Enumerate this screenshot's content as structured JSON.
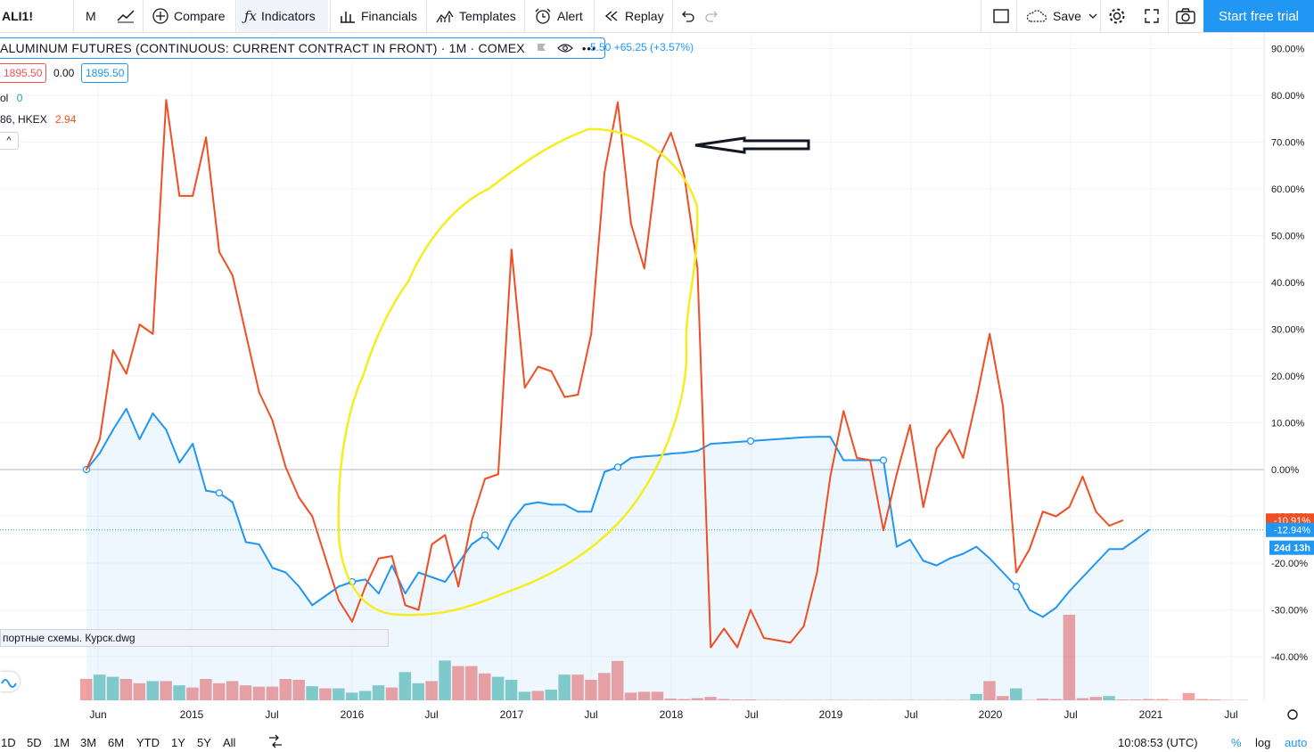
{
  "toolbar": {
    "symbol": "ALI1!",
    "interval": "M",
    "compare": "Compare",
    "indicators": "Indicators",
    "financials": "Financials",
    "templates": "Templates",
    "alert": "Alert",
    "replay": "Replay",
    "save": "Save",
    "cta": "Start free trial"
  },
  "legend": {
    "title": "ALUMINUM FUTURES (CONTINUOUS: CURRENT CONTRACT IN FRONT) · 1M · COMEX",
    "change": "5.50 +65.25 (+3.57%)",
    "bid": "1895.50",
    "spread": "0.00",
    "ask": "1895.50",
    "vol_label": "ol",
    "vol_value": "0",
    "compare_label": "86, HKEX",
    "compare_value": "2.94",
    "collapse": "^"
  },
  "drawing_tag": "портные схемы. Курск.dwg",
  "bottom": {
    "ranges": [
      "1D",
      "5D",
      "1M",
      "3M",
      "6M",
      "YTD",
      "1Y",
      "5Y",
      "All"
    ],
    "clock": "10:08:53 (UTC)",
    "pct": "%",
    "log": "log",
    "auto": "auto"
  },
  "chart_data": {
    "type": "line",
    "title": "",
    "y_unit": "%",
    "y_ticks": [
      90,
      80,
      70,
      60,
      50,
      40,
      30,
      20,
      10,
      0,
      -10,
      -20,
      -30,
      -40
    ],
    "x_ticks": [
      "Jun",
      "2015",
      "Jul",
      "2016",
      "Jul",
      "2017",
      "Jul",
      "2018",
      "Jul",
      "2019",
      "Jul",
      "2020",
      "Jul",
      "2021",
      "Jul"
    ],
    "x_start": "2014-05",
    "price_labels": {
      "red": "-10.91%",
      "blue": "-12.94%",
      "countdown": "24d 13h"
    },
    "colors": {
      "red": "#f04e23",
      "blue": "#2196f3",
      "vol_up": "#26a69a",
      "vol_down": "#ef5350",
      "annotation": "#f5ee1f"
    },
    "series": [
      {
        "values": [
          0,
          6.5,
          25.5,
          20.5,
          31,
          29,
          79,
          58.5,
          58.5,
          71,
          46.5,
          41.5,
          29,
          16.5,
          10.5,
          0.5,
          -6,
          -10,
          -19,
          -28,
          -32.5,
          -25,
          -19,
          -18.5,
          -29,
          -30,
          -16,
          -14,
          -25,
          -11,
          -2,
          -1,
          47,
          17.5,
          22,
          21,
          15.5,
          16,
          29,
          63.5,
          78.5,
          52.5,
          43,
          66,
          72,
          63,
          43,
          -38,
          -34,
          -38,
          -30,
          -36,
          -36.5,
          -37,
          -33.5,
          -22,
          -1.5,
          12.5,
          2.5,
          2,
          -13,
          -1,
          9.5,
          -8,
          4.5,
          8.5,
          2.5,
          15,
          29,
          13.5,
          -22,
          -17,
          -9,
          -10,
          -8,
          -1.5,
          -9,
          -12,
          -10.9
        ]
      },
      {
        "values": [
          0,
          3.5,
          8.5,
          13,
          6.5,
          12,
          8.5,
          1.5,
          5.5,
          -4.5,
          -5,
          -7,
          -15.5,
          -16,
          -21,
          -22,
          -25,
          -29,
          -27,
          -25,
          -24,
          -23.5,
          -26.5,
          -20.5,
          -26.5,
          -22,
          -23,
          -24,
          -20,
          -16,
          -14,
          -17,
          -11,
          -7.5,
          -7,
          -7.5,
          -7.5,
          -9,
          -9,
          -0.5,
          0.5,
          2.5,
          2.8,
          3,
          3.4,
          3.6,
          4,
          5.5,
          5.7,
          5.9,
          6.1,
          6.3,
          6.5,
          6.7,
          6.9,
          7,
          7,
          2,
          2,
          2,
          2,
          -16.5,
          -15,
          -19.5,
          -20.5,
          -19,
          -18,
          -16.5,
          -19,
          -22,
          -25,
          -30,
          -31.5,
          -29.5,
          -26,
          -23,
          -20,
          -17,
          -17,
          -15,
          -12.9
        ]
      }
    ],
    "volume": {
      "values": [
        5,
        6,
        5.5,
        5,
        4,
        4.5,
        4.5,
        3.5,
        3,
        5,
        4,
        4.5,
        3.5,
        3.2,
        3.2,
        5,
        4.8,
        3.3,
        2.8,
        2.8,
        1.8,
        2.2,
        3.5,
        3,
        6.6,
        4,
        4.5,
        9.3,
        8,
        8,
        6.3,
        5.5,
        4.8,
        2,
        2.2,
        2.5,
        6,
        6,
        4.8,
        6.4,
        9.2,
        1.8,
        2,
        2,
        0.4,
        0.3,
        0.5,
        0.8,
        0.3,
        0.2,
        0.2,
        0.1,
        0.1,
        0.1,
        0.1,
        0.1,
        0.1,
        0.1,
        0.1,
        0.1,
        0.1,
        0.1,
        0.1,
        0.1,
        0.1,
        0.1,
        0.1,
        1.5,
        4.5,
        1,
        2.8,
        0.1,
        0.4,
        0.3,
        20,
        0.5,
        0.8,
        1,
        0.2,
        0.2,
        0.3,
        0.3,
        0.1,
        1.7,
        0.3,
        0.2,
        0.1,
        0.1
      ],
      "up": [
        0,
        1,
        1,
        0,
        0,
        1,
        0,
        1,
        0,
        0,
        0,
        0,
        0,
        0,
        0,
        0,
        0,
        1,
        0,
        1,
        1,
        1,
        1,
        0,
        1,
        1,
        0,
        1,
        0,
        0,
        0,
        1,
        1,
        1,
        0,
        1,
        1,
        0,
        0,
        0,
        0,
        0,
        0,
        0,
        0,
        0,
        0,
        0,
        0,
        0,
        0,
        0,
        0,
        0,
        0,
        0,
        0,
        0,
        0,
        0,
        0,
        0,
        0,
        0,
        0,
        0,
        0,
        1,
        0,
        0,
        1,
        0,
        0,
        0,
        0,
        0,
        0,
        1,
        0,
        0,
        0,
        0,
        0,
        0,
        0,
        0,
        0,
        0
      ]
    }
  }
}
